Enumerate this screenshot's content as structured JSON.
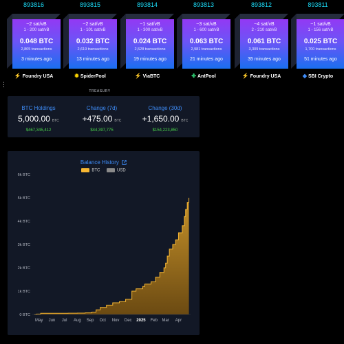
{
  "blocks": [
    {
      "height": "893816",
      "median_fee": "~2 sat/vB",
      "fee_range": "1 - 200 sat/vB",
      "reward": "0.048 BTC",
      "transactions": "2,805 transactions",
      "mined": "3 minutes ago",
      "pool": "Foundry USA",
      "pool_icon": "lightning-icon"
    },
    {
      "height": "893815",
      "median_fee": "~2 sat/vB",
      "fee_range": "1 - 101 sat/vB",
      "reward": "0.032 BTC",
      "transactions": "2,619 transactions",
      "mined": "13 minutes ago",
      "pool": "SpiderPool",
      "pool_icon": "spider-icon"
    },
    {
      "height": "893814",
      "median_fee": "~1 sat/vB",
      "fee_range": "1 - 300 sat/vB",
      "reward": "0.024 BTC",
      "transactions": "2,528 transactions",
      "mined": "19 minutes ago",
      "pool": "ViaBTC",
      "pool_icon": "lightning-icon"
    },
    {
      "height": "893813",
      "median_fee": "~3 sat/vB",
      "fee_range": "1 - 600 sat/vB",
      "reward": "0.063 BTC",
      "transactions": "2,981 transactions",
      "mined": "21 minutes ago",
      "pool": "AntPool",
      "pool_icon": "ant-icon"
    },
    {
      "height": "893812",
      "median_fee": "~4 sat/vB",
      "fee_range": "2 - 210 sat/vB",
      "reward": "0.061 BTC",
      "transactions": "3,309 transactions",
      "mined": "35 minutes ago",
      "pool": "Foundry USA",
      "pool_icon": "lightning-icon"
    },
    {
      "height": "893811",
      "median_fee": "~1 sat/vB",
      "fee_range": "1 - 156 sat/vB",
      "reward": "0.025 BTC",
      "transactions": "1,700 transactions",
      "mined": "51 minutes ago",
      "pool": "SBI Crypto",
      "pool_icon": "sbi-icon"
    }
  ],
  "nav_dots": "⋮",
  "treasury_label": "TREASURY",
  "stats": [
    {
      "label": "BTC Holdings",
      "value": "5,000.00",
      "unit": "BTC",
      "usd": "$467,345,412"
    },
    {
      "label": "Change (7d)",
      "value": "+475.00",
      "unit": "BTC",
      "usd": "$44,397,775"
    },
    {
      "label": "Change (30d)",
      "value": "+1,650.00",
      "unit": "BTC",
      "usd": "$154,223,850"
    }
  ],
  "chart_title": "Balance History",
  "legend": [
    {
      "label": "BTC",
      "color": "#f7b733"
    },
    {
      "label": "USD",
      "color": "#8a8a8a"
    }
  ],
  "colors": {
    "accent": "#3e8cf7",
    "positive": "#4ad54a",
    "height": "#1bd8f4",
    "btc_line": "#f7b733",
    "btc_fill_top": "#c8932a",
    "btc_fill_bottom": "#6b4a12"
  },
  "chart_data": {
    "type": "area",
    "title": "Balance History",
    "series": [
      {
        "name": "BTC",
        "points": [
          [
            "2024-04-20",
            0
          ],
          [
            "2024-04-25",
            20
          ],
          [
            "2024-05-05",
            50
          ],
          [
            "2024-07-10",
            55
          ],
          [
            "2024-08-01",
            60
          ],
          [
            "2024-08-20",
            70
          ],
          [
            "2024-09-05",
            100
          ],
          [
            "2024-09-15",
            200
          ],
          [
            "2024-09-25",
            300
          ],
          [
            "2024-10-10",
            400
          ],
          [
            "2024-10-25",
            500
          ],
          [
            "2024-11-10",
            550
          ],
          [
            "2024-11-25",
            650
          ],
          [
            "2024-12-10",
            1000
          ],
          [
            "2024-12-20",
            1100
          ],
          [
            "2025-01-05",
            1200
          ],
          [
            "2025-01-10",
            1300
          ],
          [
            "2025-01-25",
            1400
          ],
          [
            "2025-02-05",
            1600
          ],
          [
            "2025-02-15",
            1800
          ],
          [
            "2025-02-25",
            2000
          ],
          [
            "2025-03-01",
            2200
          ],
          [
            "2025-03-05",
            2500
          ],
          [
            "2025-03-10",
            2800
          ],
          [
            "2025-03-18",
            3000
          ],
          [
            "2025-03-25",
            3200
          ],
          [
            "2025-04-01",
            3500
          ],
          [
            "2025-04-10",
            3800
          ],
          [
            "2025-04-15",
            4200
          ],
          [
            "2025-04-18",
            4500
          ],
          [
            "2025-04-22",
            4800
          ],
          [
            "2025-04-26",
            5000
          ]
        ]
      }
    ],
    "x_tick_labels": [
      "May",
      "Jun",
      "Jul",
      "Aug",
      "Sep",
      "Oct",
      "Nov",
      "Dec",
      "2025",
      "Feb",
      "Mar",
      "Apr"
    ],
    "x_ticks": [
      "2024-05-01",
      "2024-06-01",
      "2024-07-01",
      "2024-08-01",
      "2024-09-01",
      "2024-10-01",
      "2024-11-01",
      "2024-12-01",
      "2025-01-01",
      "2025-02-01",
      "2025-03-01",
      "2025-04-01"
    ],
    "y_tick_labels": [
      "0 BTC",
      "1k BTC",
      "2k BTC",
      "3k BTC",
      "4k BTC",
      "5k BTC",
      "6k BTC"
    ],
    "y_ticks": [
      0,
      1000,
      2000,
      3000,
      4000,
      5000,
      6000
    ],
    "xlim": [
      "2024-04-15",
      "2025-04-30"
    ],
    "ylim": [
      0,
      6000
    ],
    "grid": false
  }
}
